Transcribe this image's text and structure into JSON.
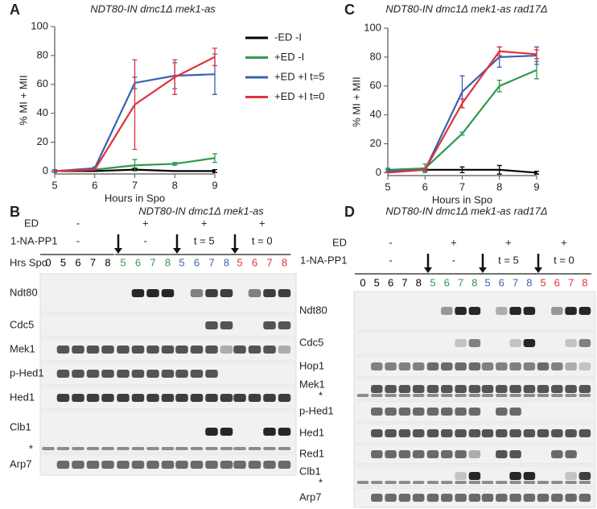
{
  "panel_labels": [
    "A",
    "B",
    "C",
    "D"
  ],
  "chart_data": [
    {
      "type": "line",
      "title": "NDT80-IN dmc1Δ mek1-as",
      "x_label": "Hours in Spo",
      "y_label": "% MI + MII",
      "x": [
        5,
        6,
        7,
        8,
        9
      ],
      "xlim": [
        5,
        9
      ],
      "xticks": [
        5,
        6,
        7,
        8,
        9
      ],
      "ylim": [
        -2,
        100
      ],
      "yticks": [
        0,
        20,
        40,
        60,
        80,
        100
      ],
      "legend": true,
      "legend_position": "right",
      "series": [
        {
          "name": "-ED -I",
          "color": "#000000",
          "values": [
            0,
            0,
            1,
            0,
            0
          ],
          "errors": [
            0,
            0,
            1,
            0,
            1
          ]
        },
        {
          "name": "+ED -I",
          "color": "#2e9a4e",
          "values": [
            0,
            1,
            4,
            5,
            9
          ],
          "errors": [
            0,
            0,
            4,
            1,
            3
          ]
        },
        {
          "name": "+ED +I t=5",
          "color": "#3a62b0",
          "values": [
            0,
            2,
            61,
            66,
            67
          ],
          "errors": [
            1,
            1,
            4,
            9,
            14
          ]
        },
        {
          "name": "+ED +I t=0",
          "color": "#e0323c",
          "values": [
            0,
            1,
            46,
            65,
            79
          ],
          "errors": [
            0,
            0,
            31,
            12,
            6
          ]
        }
      ]
    },
    {
      "type": "line",
      "title": "NDT80-IN dmc1Δ mek1-as rad17Δ",
      "x_label": "Hours in Spo",
      "y_label": "% MI + MII",
      "x": [
        5,
        6,
        7,
        8,
        9
      ],
      "xlim": [
        5,
        9
      ],
      "xticks": [
        5,
        6,
        7,
        8,
        9
      ],
      "ylim": [
        -2,
        100
      ],
      "yticks": [
        0,
        20,
        40,
        60,
        80,
        100
      ],
      "legend": false,
      "series": [
        {
          "color": "#000000",
          "values": [
            2,
            2,
            2,
            2,
            0
          ],
          "errors": [
            1,
            1,
            2,
            3,
            1
          ]
        },
        {
          "color": "#2e9a4e",
          "values": [
            2,
            3,
            27,
            60,
            71
          ],
          "errors": [
            1,
            3,
            1,
            4,
            6
          ]
        },
        {
          "color": "#3a62b0",
          "values": [
            1,
            2,
            56,
            80,
            81
          ],
          "errors": [
            1,
            1,
            11,
            7,
            6
          ]
        },
        {
          "color": "#e0323c",
          "values": [
            0,
            2,
            48,
            84,
            82
          ],
          "errors": [
            0,
            0,
            3,
            3,
            3
          ]
        }
      ]
    }
  ],
  "blots": [
    {
      "title": "NDT80-IN dmc1Δ mek1-as",
      "header": {
        "ed_label": "ED",
        "ed": [
          "-",
          "+",
          "+",
          "+"
        ],
        "drug_label": "1-NA-PP1",
        "drug": [
          "-",
          "-",
          "t = 5",
          "t = 0"
        ],
        "time_label": "Hrs Spo"
      },
      "lanes": [
        {
          "color": "#000000",
          "hours": [
            0,
            5,
            6,
            7,
            8
          ]
        },
        {
          "color": "#2e9a4e",
          "hours": [
            5,
            6,
            7,
            8
          ]
        },
        {
          "color": "#3a62b0",
          "hours": [
            5,
            6,
            7,
            8
          ]
        },
        {
          "color": "#e0323c",
          "hours": [
            5,
            6,
            7,
            8
          ]
        }
      ],
      "rows": [
        {
          "label": "Ndt80"
        },
        {
          "label": "Cdc5"
        },
        {
          "label": "Mek1"
        },
        {
          "label": "p-Hed1"
        },
        {
          "label": "Hed1"
        },
        {
          "label": "Clb1",
          "note": "*"
        },
        {
          "label": "Arp7"
        }
      ]
    },
    {
      "title": "NDT80-IN dmc1Δ mek1-as rad17Δ",
      "header": {
        "ed_label": "ED",
        "ed": [
          "-",
          "+",
          "+",
          "+"
        ],
        "drug_label": "1-NA-PP1",
        "drug": [
          "-",
          "-",
          "t = 5",
          "t = 0"
        ]
      },
      "lanes": [
        {
          "color": "#000000",
          "hours": [
            0,
            5,
            6,
            7,
            8
          ]
        },
        {
          "color": "#2e9a4e",
          "hours": [
            5,
            6,
            7,
            8
          ]
        },
        {
          "color": "#3a62b0",
          "hours": [
            5,
            6,
            7,
            8
          ]
        },
        {
          "color": "#e0323c",
          "hours": [
            5,
            6,
            7,
            8
          ]
        }
      ],
      "rows": [
        {
          "label": "Ndt80"
        },
        {
          "label": "Cdc5"
        },
        {
          "label": "Hop1"
        },
        {
          "label": "Mek1",
          "note": "*"
        },
        {
          "label": "p-Hed1"
        },
        {
          "label": "Hed1"
        },
        {
          "label": "Red1"
        },
        {
          "label": "Clb1",
          "note": "*"
        },
        {
          "label": "Arp7"
        }
      ]
    }
  ]
}
